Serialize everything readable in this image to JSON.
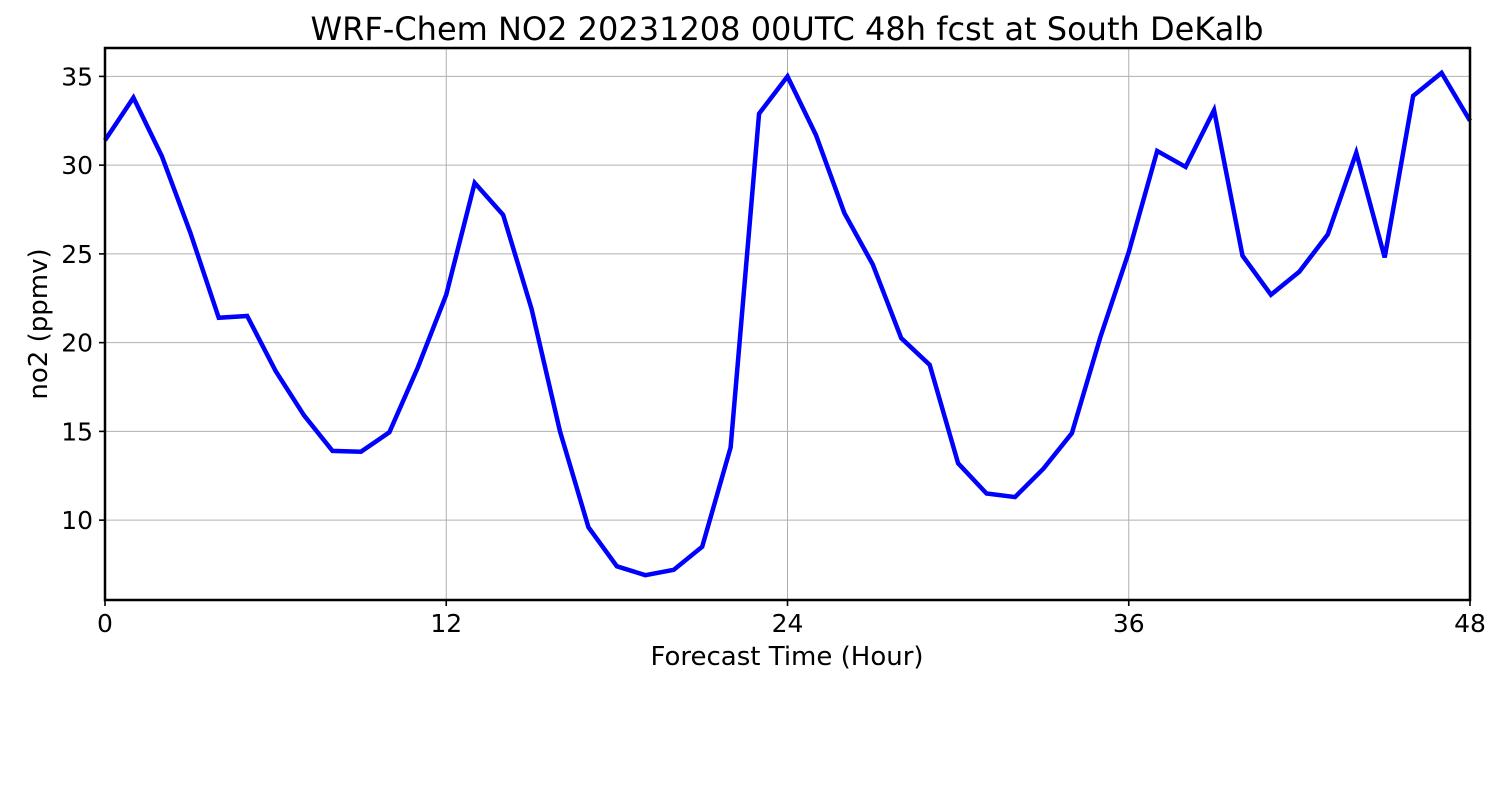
{
  "chart_data": {
    "type": "line",
    "title": "WRF-Chem NO2  20231208 00UTC 48h fcst at South DeKalb",
    "xlabel": "Forecast Time (Hour)",
    "ylabel": "no2  (ppmv)",
    "xlim": [
      0,
      48
    ],
    "ylim": [
      5.5,
      36.6
    ],
    "xticks": [
      0,
      12,
      24,
      36,
      48
    ],
    "yticks": [
      10,
      15,
      20,
      25,
      30,
      35
    ],
    "grid": true,
    "line_color": "#0000ff",
    "series": [
      {
        "x": [
          0,
          1,
          2,
          3,
          4,
          5,
          6,
          7,
          8,
          9,
          10,
          11,
          12,
          13,
          14,
          15,
          16,
          17,
          18,
          19,
          20,
          21,
          22,
          23,
          24,
          25,
          26,
          27,
          28,
          29,
          30,
          31,
          32,
          33,
          34,
          35,
          36,
          37,
          38,
          39,
          40,
          41,
          42,
          43,
          44,
          45,
          46,
          47,
          48
        ],
        "values": [
          31.4,
          33.8,
          30.5,
          26.2,
          21.4,
          21.5,
          18.4,
          15.9,
          13.9,
          13.85,
          14.95,
          18.6,
          22.7,
          29.0,
          27.2,
          21.9,
          15.0,
          9.6,
          7.4,
          6.9,
          7.2,
          8.5,
          14.1,
          32.9,
          35.0,
          31.7,
          27.3,
          24.4,
          20.25,
          18.75,
          13.2,
          11.5,
          11.3,
          12.9,
          14.9,
          20.3,
          25.1,
          30.8,
          29.9,
          33.1,
          24.9,
          22.7,
          24.0,
          26.1,
          30.7,
          24.8,
          33.9,
          35.2,
          32.5
        ]
      }
    ]
  }
}
